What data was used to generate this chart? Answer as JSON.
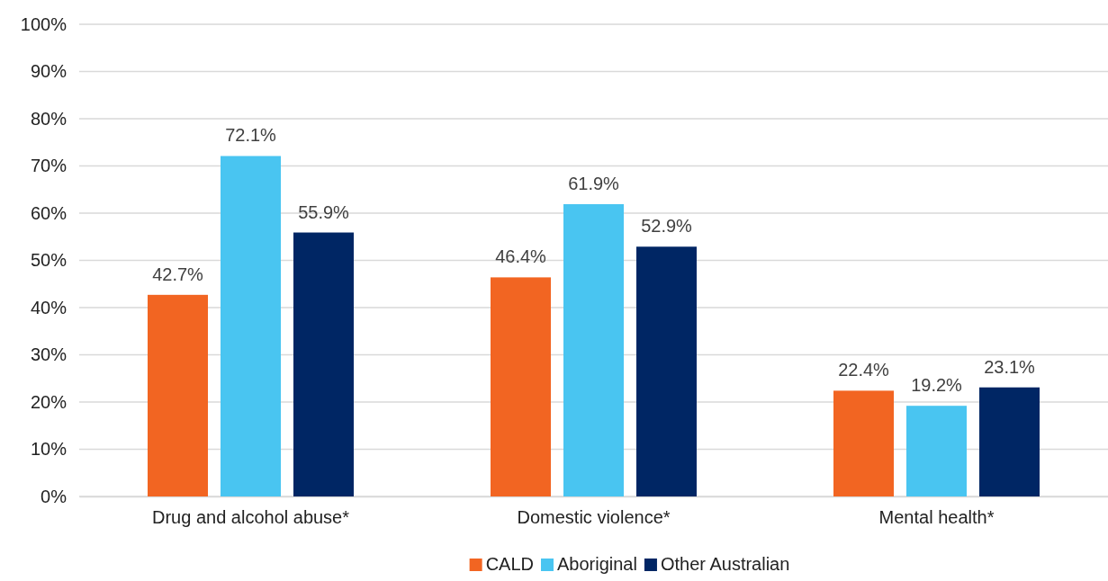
{
  "chart_data": {
    "type": "bar",
    "categories": [
      "Drug and alcohol abuse*",
      "Domestic violence*",
      "Mental health*"
    ],
    "series": [
      {
        "name": "CALD",
        "color": "#f26522",
        "values": [
          42.7,
          46.4,
          22.4
        ],
        "value_labels": [
          "42.7%",
          "46.4%",
          "22.4%"
        ]
      },
      {
        "name": "Aboriginal",
        "color": "#49c5f1",
        "values": [
          72.1,
          61.9,
          19.2
        ],
        "value_labels": [
          "72.1%",
          "61.9%",
          "19.2%"
        ]
      },
      {
        "name": "Other Australian",
        "color": "#002664",
        "values": [
          55.9,
          52.9,
          23.1
        ],
        "value_labels": [
          "55.9%",
          "52.9%",
          "23.1%"
        ]
      }
    ],
    "ylim": [
      0,
      100
    ],
    "yticks": [
      {
        "value": 0,
        "label": "0%"
      },
      {
        "value": 10,
        "label": "10%"
      },
      {
        "value": 20,
        "label": "20%"
      },
      {
        "value": 30,
        "label": "30%"
      },
      {
        "value": 40,
        "label": "40%"
      },
      {
        "value": 50,
        "label": "50%"
      },
      {
        "value": 60,
        "label": "60%"
      },
      {
        "value": 70,
        "label": "70%"
      },
      {
        "value": 80,
        "label": "80%"
      },
      {
        "value": 90,
        "label": "90%"
      },
      {
        "value": 100,
        "label": "100%"
      }
    ],
    "grid": "y",
    "legend": "bottom"
  }
}
